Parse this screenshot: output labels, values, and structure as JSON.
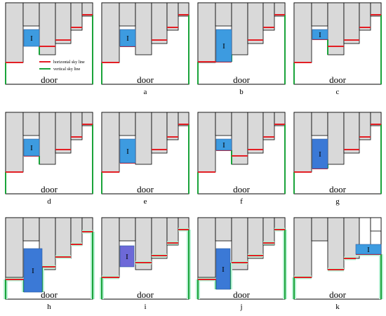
{
  "figure": {
    "colors": {
      "block": "#d9d9d9",
      "item": "#3d9be0",
      "item_dark": "#3b79d6",
      "item_purple": "#6d69d8",
      "horizontal": "#e31e24",
      "vertical": "#1aa33a",
      "glow": "#b6f0d2",
      "outline": "#000000"
    },
    "legend": {
      "horizontal_label": "horizontal sky line",
      "vertical_label": "vertical sky line"
    },
    "door_label": "door",
    "item_label": "I",
    "panels": [
      {
        "caption": ""
      },
      {
        "caption": "a"
      },
      {
        "caption": "b"
      },
      {
        "caption": "c"
      },
      {
        "caption": "d"
      },
      {
        "caption": "e"
      },
      {
        "caption": "f"
      },
      {
        "caption": "g"
      },
      {
        "caption": "h"
      },
      {
        "caption": "i"
      },
      {
        "caption": "j"
      },
      {
        "caption": "k"
      }
    ]
  }
}
